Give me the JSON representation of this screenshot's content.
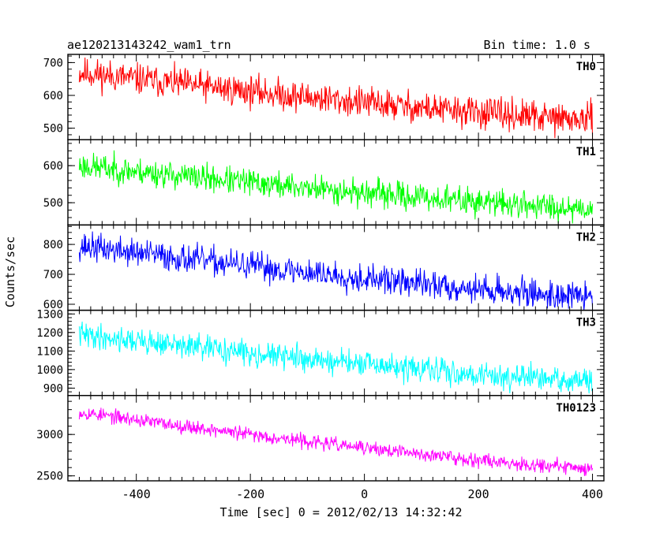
{
  "header": {
    "title": "ae120213143242_wam1_trn",
    "bin_time": "Bin time: 1.0 s"
  },
  "chart_data": {
    "type": "line",
    "xlabel": "Time [sec] 0 = 2012/02/13 14:32:42",
    "ylabel": "Counts/sec",
    "xlim": [
      -520,
      420
    ],
    "x_ticks": [
      -400,
      -200,
      0,
      200,
      400
    ],
    "x_range": [
      -500,
      400
    ],
    "series": [
      {
        "name": "TH0",
        "color": "#ff0000",
        "ylim": [
          465,
          725
        ],
        "y_ticks": [
          500,
          600,
          700
        ],
        "start_value": 670,
        "end_value": 525,
        "noise": 35,
        "seed": 11
      },
      {
        "name": "TH1",
        "color": "#00ff00",
        "ylim": [
          440,
          670
        ],
        "y_ticks": [
          500,
          600
        ],
        "start_value": 600,
        "end_value": 485,
        "noise": 27,
        "seed": 23
      },
      {
        "name": "TH2",
        "color": "#0000ff",
        "ylim": [
          580,
          865
        ],
        "y_ticks": [
          600,
          700,
          800
        ],
        "start_value": 795,
        "end_value": 625,
        "noise": 35,
        "seed": 37
      },
      {
        "name": "TH3",
        "color": "#00ffff",
        "ylim": [
          860,
          1320
        ],
        "y_ticks": [
          900,
          1000,
          1100,
          1200,
          1300
        ],
        "start_value": 1190,
        "end_value": 935,
        "noise": 50,
        "seed": 41
      },
      {
        "name": "TH0123",
        "color": "#ff00ff",
        "ylim": [
          2440,
          3470
        ],
        "y_ticks": [
          2500,
          3000
        ],
        "start_value": 3270,
        "end_value": 2590,
        "noise": 62,
        "seed": 53
      }
    ]
  }
}
